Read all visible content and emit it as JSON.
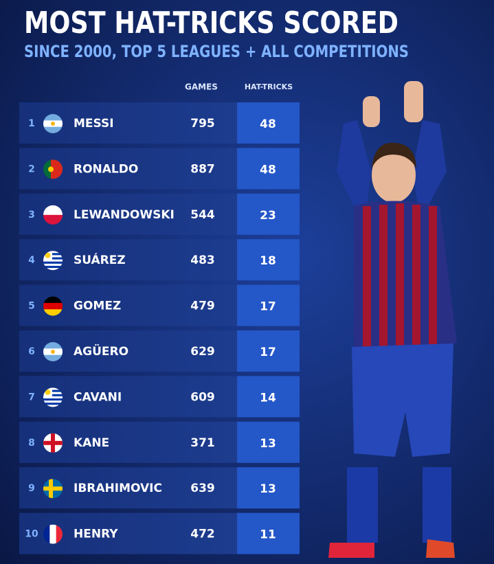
{
  "header": {
    "title": "MOST HAT-TRICKS SCORED",
    "subtitle": "SINCE 2000, TOP 5 LEAGUES + ALL COMPETITIONS"
  },
  "table": {
    "columns": [
      "GAMES",
      "HAT-TRICKS"
    ],
    "rows": [
      [
        1,
        "MESSI",
        795,
        48
      ],
      [
        2,
        "RONALDO",
        887,
        48
      ],
      [
        3,
        "LEWANDOWSKI",
        544,
        23
      ],
      [
        4,
        "SUÁREZ",
        483,
        18
      ],
      [
        5,
        "GOMEZ",
        479,
        17
      ],
      [
        6,
        "AGÜERO",
        629,
        17
      ],
      [
        7,
        "CAVANI",
        609,
        14
      ],
      [
        8,
        "KANE",
        371,
        13
      ],
      [
        9,
        "IBRAHIMOVIC",
        639,
        13
      ],
      [
        10,
        "HENRY",
        472,
        11
      ]
    ]
  }
}
